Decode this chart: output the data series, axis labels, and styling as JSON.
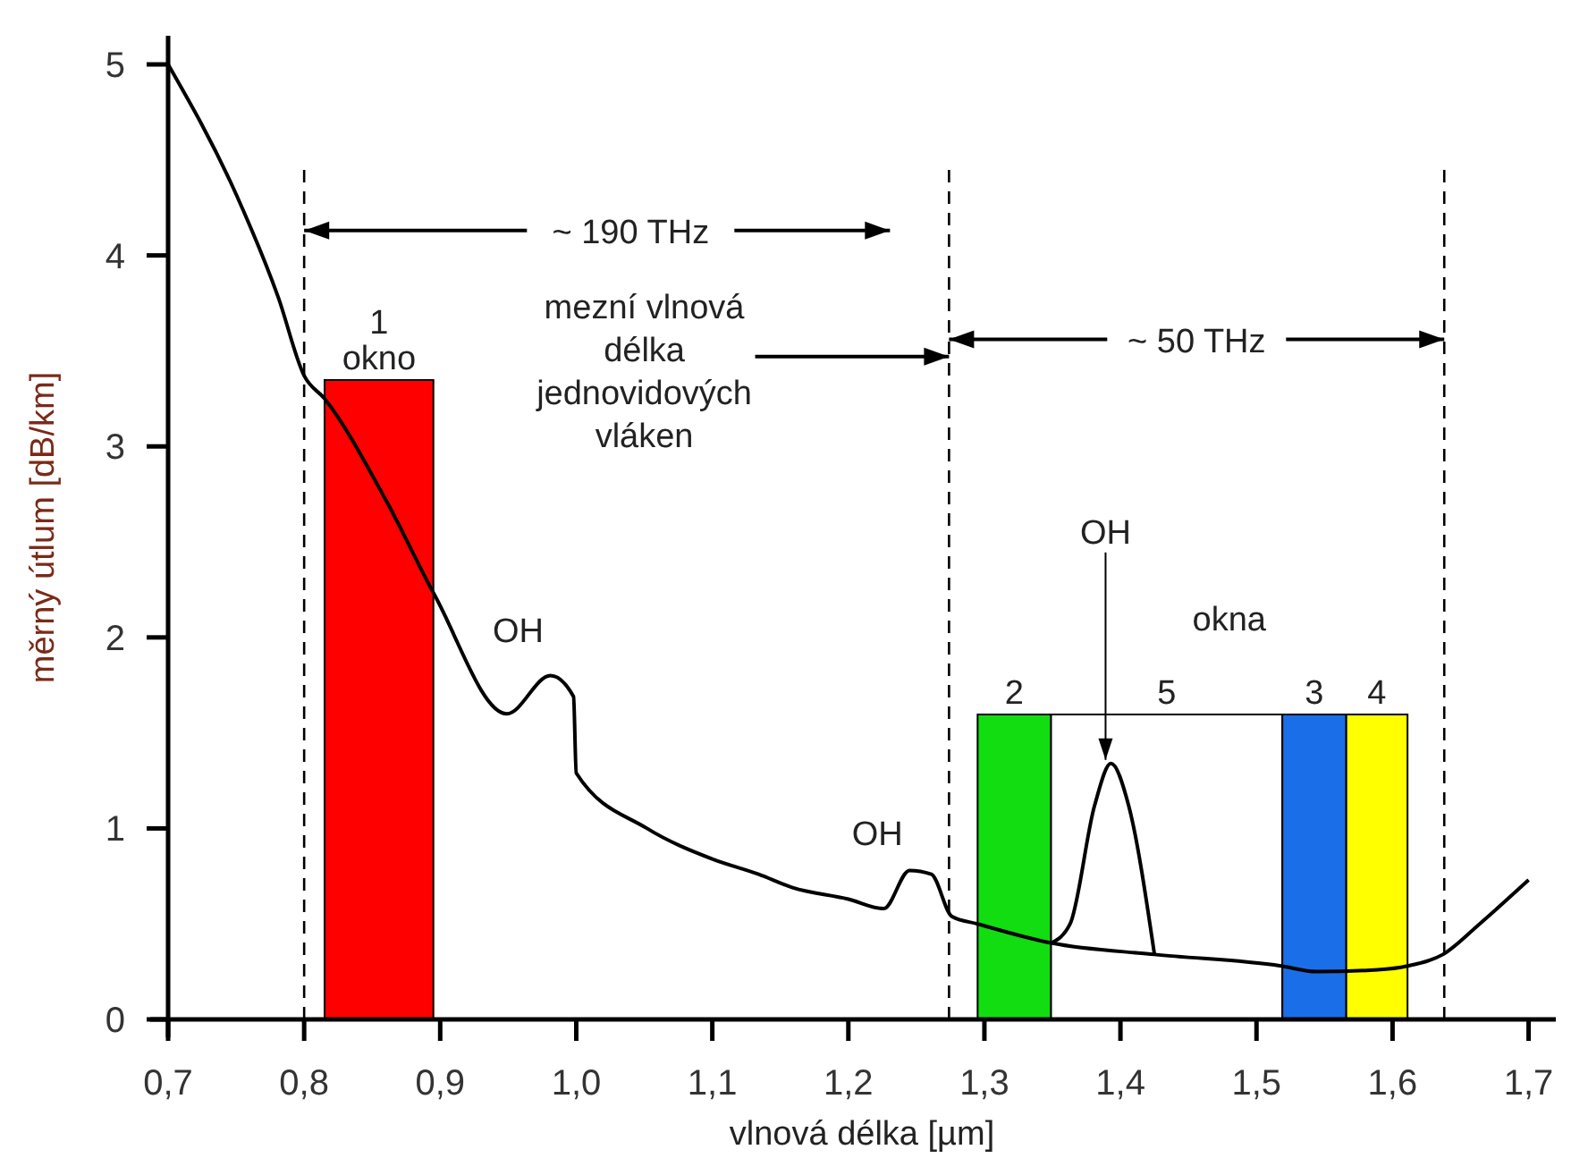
{
  "chart_data": {
    "type": "line",
    "xlabel": "vlnová délka  [µm]",
    "ylabel": "měrný útlum  [dB/km]",
    "xlim": [
      0.7,
      1.72
    ],
    "ylim": [
      0,
      5.15
    ],
    "xticks": [
      {
        "value": 0.7,
        "label": "0,7"
      },
      {
        "value": 0.8,
        "label": "0,8"
      },
      {
        "value": 0.9,
        "label": "0,9"
      },
      {
        "value": 1.0,
        "label": "1,0"
      },
      {
        "value": 1.1,
        "label": "1,1"
      },
      {
        "value": 1.2,
        "label": "1,2"
      },
      {
        "value": 1.3,
        "label": "1,3"
      },
      {
        "value": 1.4,
        "label": "1,4"
      },
      {
        "value": 1.5,
        "label": "1,5"
      },
      {
        "value": 1.6,
        "label": "1,6"
      },
      {
        "value": 1.7,
        "label": "1,7"
      }
    ],
    "yticks": [
      0,
      1,
      2,
      3,
      4,
      5
    ],
    "grid": false,
    "marker": "none",
    "line_style": "solid",
    "series": [
      {
        "color": "#000000",
        "x": [
          0.7,
          0.75,
          0.781,
          0.8,
          0.815,
          0.86,
          0.896,
          0.949,
          0.981,
          0.998,
          1.0,
          1.052,
          1.1,
          1.134,
          1.159,
          1.2,
          1.226,
          1.245,
          1.261,
          1.276,
          1.295,
          1.349,
          1.425,
          1.518,
          1.544,
          1.589,
          1.611,
          1.637,
          1.664,
          1.7
        ],
        "values": [
          5.0,
          4.32,
          3.78,
          3.37,
          3.25,
          2.72,
          2.22,
          1.6,
          1.8,
          1.69,
          1.29,
          1.0,
          0.84,
          0.76,
          0.69,
          0.63,
          0.58,
          0.78,
          0.76,
          0.54,
          0.5,
          0.4,
          0.34,
          0.28,
          0.25,
          0.26,
          0.28,
          0.34,
          0.5,
          0.73
        ]
      },
      {
        "type": "line",
        "color": "#000000",
        "x": [
          1.349,
          1.363,
          1.381,
          1.393,
          1.406,
          1.425
        ],
        "values": [
          0.4,
          0.5,
          1.12,
          1.34,
          1.12,
          0.34
        ]
      }
    ],
    "ref_lines": [
      {
        "axis": "x",
        "value": 0.8,
        "line_style": "dashed",
        "color": "#000000"
      },
      {
        "axis": "x",
        "value": 1.274,
        "line_style": "dashed",
        "color": "#000000"
      },
      {
        "axis": "x",
        "value": 1.638,
        "line_style": "dashed",
        "color": "#000000"
      }
    ],
    "bands": [
      {
        "axis": "x",
        "from": 0.815,
        "to": 0.895,
        "label": "1\nokno",
        "color": "#ff0000"
      },
      {
        "axis": "x",
        "from": 1.295,
        "to": 1.349,
        "label": "2",
        "color": "#11dd11"
      },
      {
        "axis": "x",
        "from": 1.349,
        "to": 1.519,
        "label": "5",
        "color": "#ffffff"
      },
      {
        "axis": "x",
        "from": 1.519,
        "to": 1.566,
        "label": "3",
        "color": "#1a6fe8"
      },
      {
        "axis": "x",
        "from": 1.566,
        "to": 1.611,
        "label": "4",
        "color": "#ffff00"
      }
    ],
    "annotations": [
      {
        "text": "~ 190 THz",
        "x": 0.8,
        "y": 4.13
      },
      {
        "text": "mezní vlnová\ndélka\njednovidových\nvláken",
        "x": 1.274,
        "y": 3.47
      },
      {
        "text": "~ 50 THz",
        "x": 1.638,
        "y": 3.56
      },
      "okna",
      {
        "text": "OH",
        "x": 0.981,
        "y": 1.8
      },
      {
        "text": "OH",
        "x": 1.245,
        "y": 0.78
      },
      {
        "text": "OH",
        "x": 1.393,
        "y": 1.34
      }
    ]
  }
}
